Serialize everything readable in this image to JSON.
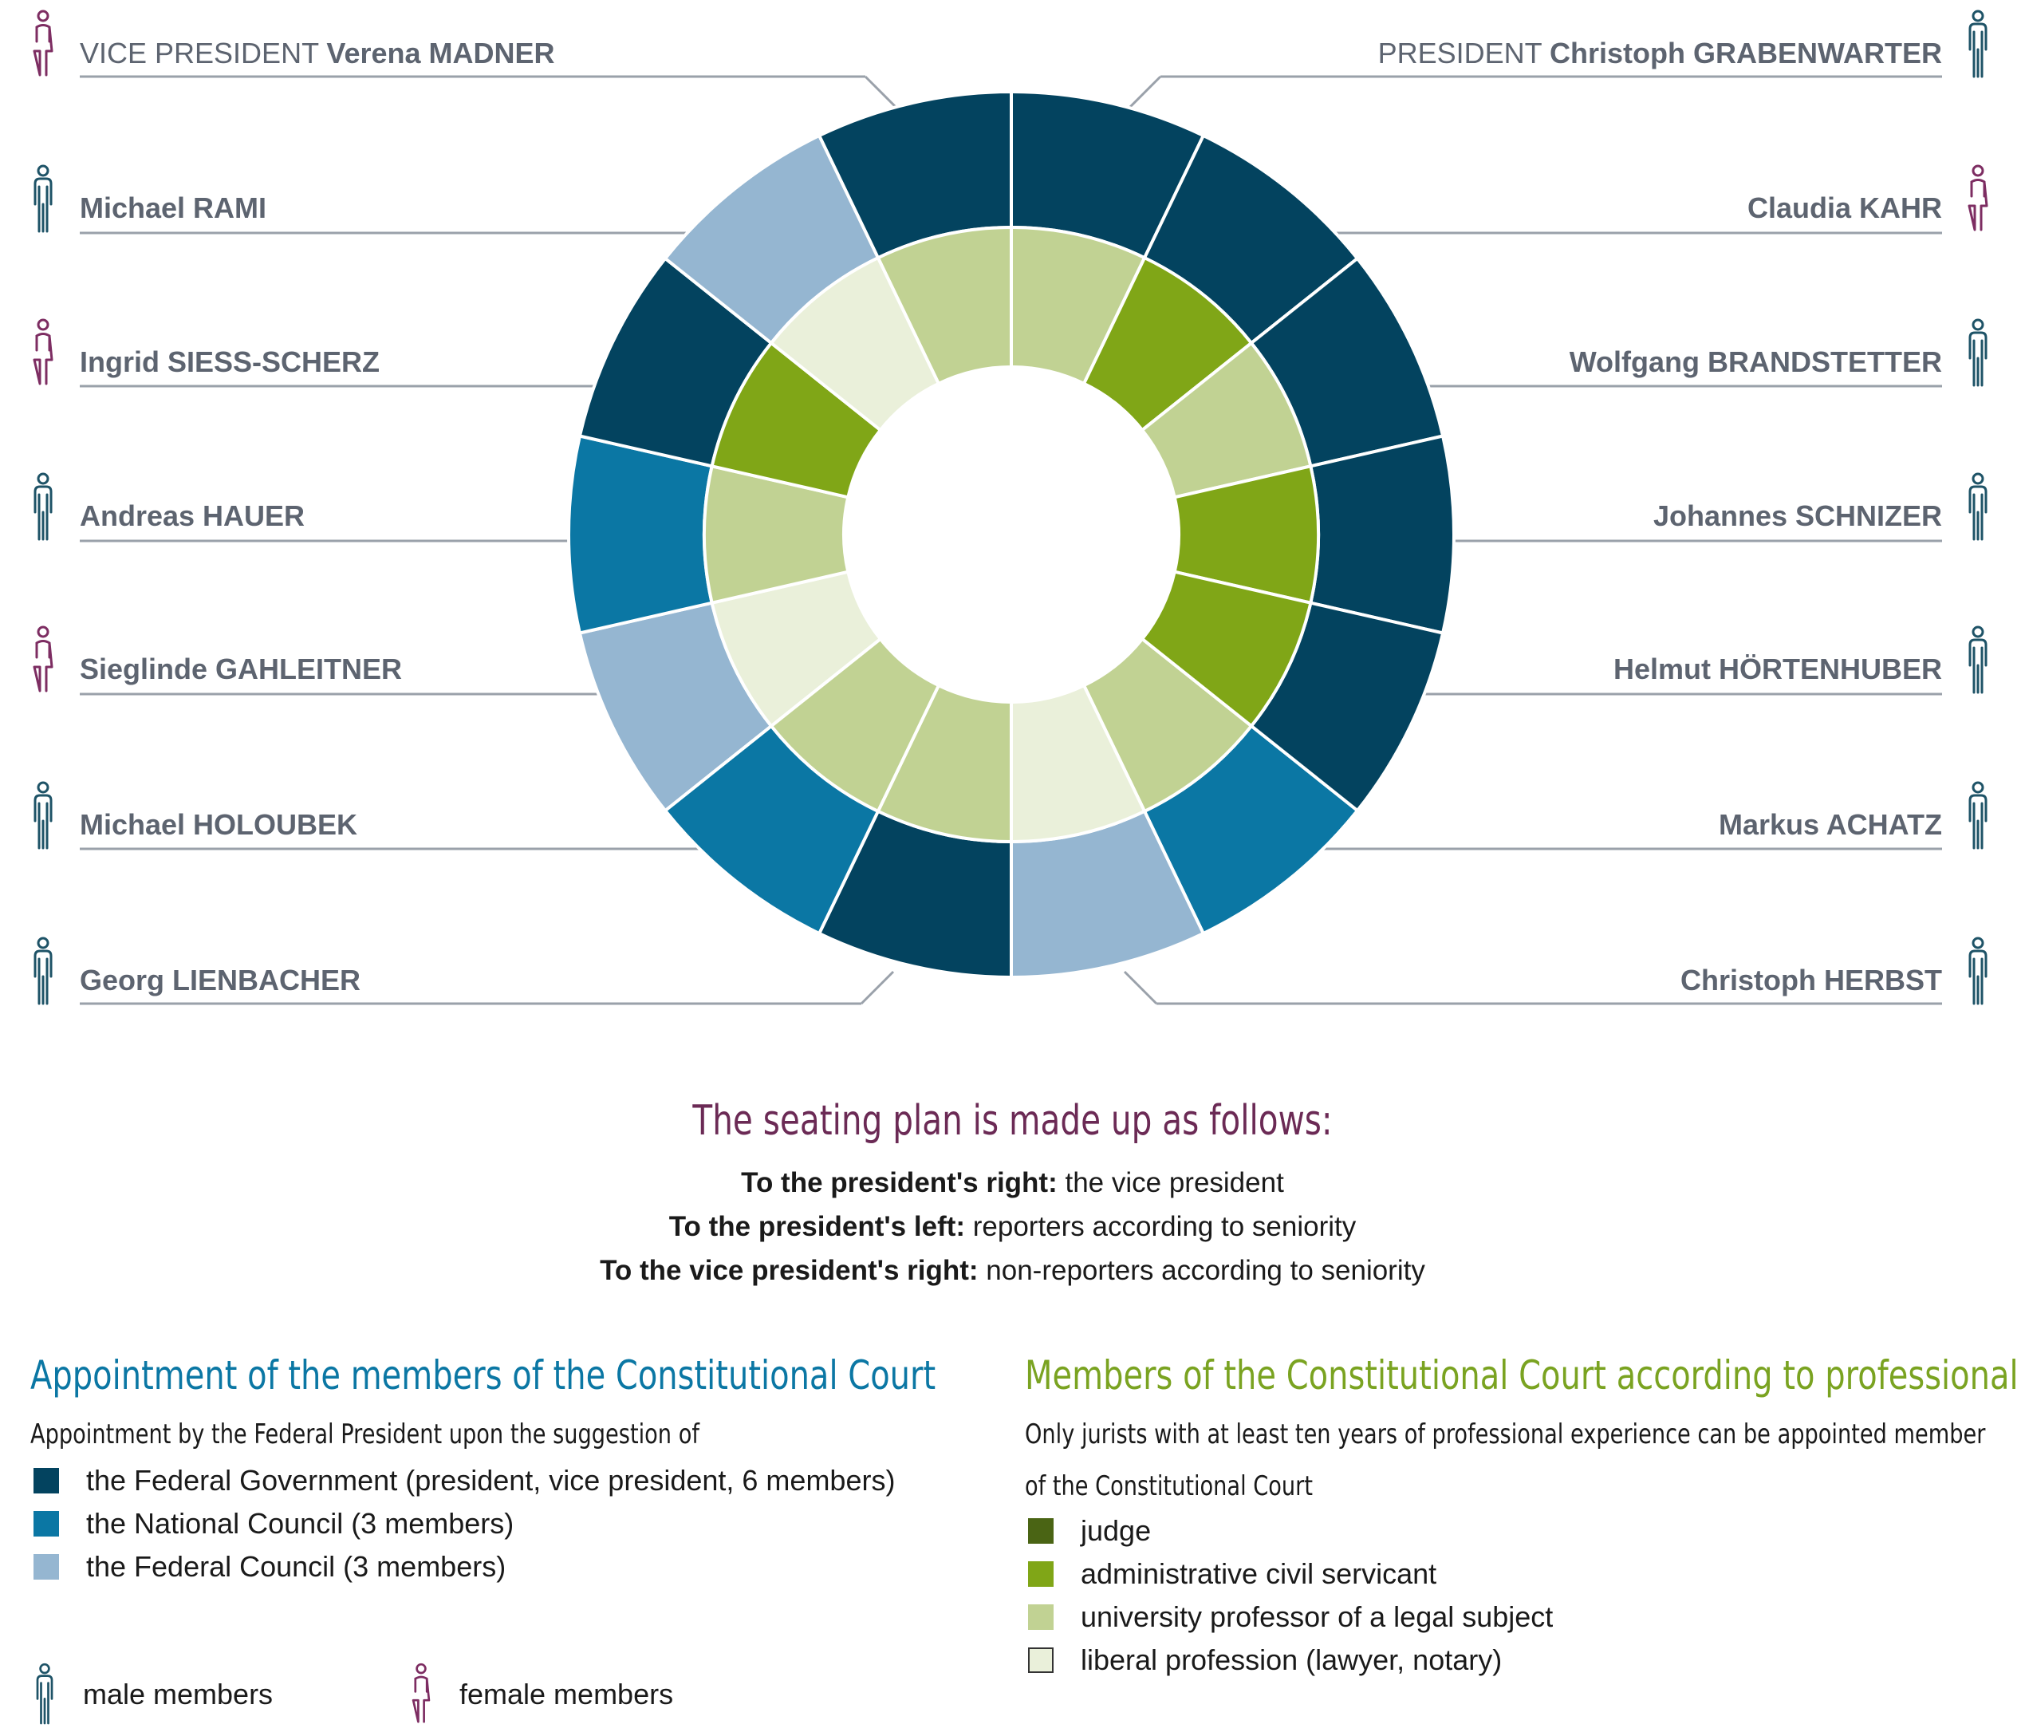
{
  "members_left": [
    {
      "role": "VICE PRESIDENT",
      "name": "Verena MADNER",
      "gender": "female",
      "appointment": "federal_government",
      "profession": "university_professor"
    },
    {
      "role": "",
      "name": "Michael RAMI",
      "gender": "male",
      "appointment": "federal_council",
      "profession": "liberal_profession"
    },
    {
      "role": "",
      "name": "Ingrid SIESS-SCHERZ",
      "gender": "female",
      "appointment": "federal_government",
      "profession": "administrative_civil_servant"
    },
    {
      "role": "",
      "name": "Andreas HAUER",
      "gender": "male",
      "appointment": "national_council",
      "profession": "university_professor"
    },
    {
      "role": "",
      "name": "Sieglinde GAHLEITNER",
      "gender": "female",
      "appointment": "federal_council",
      "profession": "liberal_profession"
    },
    {
      "role": "",
      "name": "Michael HOLOUBEK",
      "gender": "male",
      "appointment": "national_council",
      "profession": "university_professor"
    },
    {
      "role": "",
      "name": "Georg LIENBACHER",
      "gender": "male",
      "appointment": "federal_government",
      "profession": "university_professor"
    }
  ],
  "members_right": [
    {
      "role": "PRESIDENT",
      "name": "Christoph GRABENWARTER",
      "gender": "male",
      "appointment": "federal_government",
      "profession": "university_professor"
    },
    {
      "role": "",
      "name": "Claudia KAHR",
      "gender": "female",
      "appointment": "federal_government",
      "profession": "administrative_civil_servant"
    },
    {
      "role": "",
      "name": "Wolfgang BRANDSTETTER",
      "gender": "male",
      "appointment": "federal_government",
      "profession": "university_professor"
    },
    {
      "role": "",
      "name": "Johannes SCHNIZER",
      "gender": "male",
      "appointment": "federal_government",
      "profession": "administrative_civil_servant"
    },
    {
      "role": "",
      "name": "Helmut HÖRTENHUBER",
      "gender": "male",
      "appointment": "federal_government",
      "profession": "administrative_civil_servant"
    },
    {
      "role": "",
      "name": "Markus ACHATZ",
      "gender": "male",
      "appointment": "national_council",
      "profession": "university_professor"
    },
    {
      "role": "",
      "name": "Christoph HERBST",
      "gender": "male",
      "appointment": "federal_council",
      "profession": "liberal_profession"
    }
  ],
  "seating": {
    "title": "The seating plan is made up as follows:",
    "rules": [
      {
        "bold": "To the president's right:",
        "text": " the vice president"
      },
      {
        "bold": "To the president's left:",
        "text": " reporters according to seniority"
      },
      {
        "bold": "To the vice president's right:",
        "text": " non-reporters according to seniority"
      }
    ]
  },
  "appointment": {
    "title": "Appointment of the members of the Constitutional Court",
    "subtitle": "Appointment by the Federal President upon the suggestion of",
    "items": [
      {
        "key": "federal_government",
        "label": "the Federal Government (president, vice president, 6 members)",
        "color": "#03435f"
      },
      {
        "key": "national_council",
        "label": "the National Council (3 members)",
        "color": "#0b77a4"
      },
      {
        "key": "federal_council",
        "label": "the Federal Council (3 members)",
        "color": "#95b6d1"
      }
    ]
  },
  "profession": {
    "title": "Members of the Constitutional Court according to professional group",
    "subtitle_line1": "Only jurists with at least ten years of professional experience can be appointed member",
    "subtitle_line2": "of the Constitutional Court",
    "items": [
      {
        "key": "judge",
        "label": "judge",
        "color": "#4a6414"
      },
      {
        "key": "administrative_civil_servant",
        "label": "administrative civil servicant",
        "color": "#80a617"
      },
      {
        "key": "university_professor",
        "label": "university professor of a legal subject",
        "color": "#c1d293"
      },
      {
        "key": "liberal_profession",
        "label": "liberal profession (lawyer, notary)",
        "color": "#eaf0da"
      }
    ]
  },
  "gender_legend": {
    "male_label": "male members",
    "female_label": "female members",
    "male_color": "#1e5367",
    "female_color": "#7d2d62",
    "male_icon": "male-person-icon",
    "female_icon": "female-person-icon"
  },
  "colors": {
    "title_appointment": "#0b77a4",
    "title_profession": "#7aa321",
    "seating_title": "#6b2a55",
    "leader_line": "#9aa1aa"
  }
}
